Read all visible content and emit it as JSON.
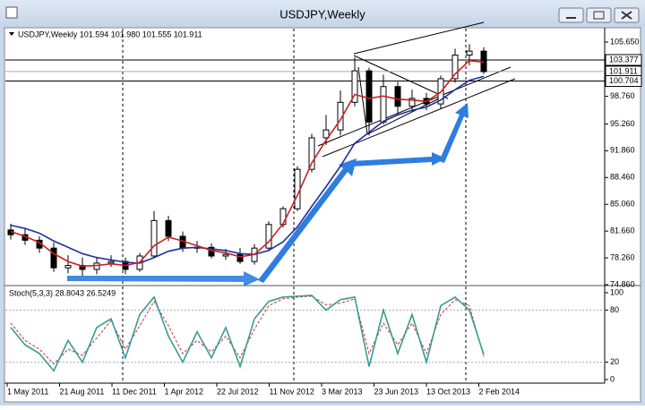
{
  "window": {
    "title": "USDJPY,Weekly"
  },
  "chart_data": {
    "type": "candlestick",
    "header": "USDJPY,Weekly  101.594 101.980 101.555 101.911",
    "open": [
      81.8,
      81.2,
      80.5,
      79.5,
      77.0,
      77.3,
      76.8,
      77.6,
      77.8,
      76.8,
      78.5,
      83.0,
      81.0,
      79.5,
      79.6,
      78.5,
      78.7,
      77.8,
      79.5,
      82.5,
      84.5,
      89.5,
      93.5,
      94.5,
      98.0,
      102.0,
      95.5,
      100.0,
      97.5,
      98.5,
      97.8,
      101.0,
      104.0,
      104.5
    ],
    "high": [
      82.6,
      81.9,
      81.0,
      80.2,
      78.6,
      78.3,
      78.4,
      78.6,
      78.3,
      78.9,
      84.2,
      83.6,
      81.6,
      80.4,
      80.1,
      79.4,
      79.5,
      80.0,
      82.9,
      84.8,
      89.9,
      94.0,
      96.4,
      99.5,
      103.7,
      102.4,
      101.5,
      100.6,
      99.6,
      99.2,
      101.4,
      104.8,
      105.4,
      105.0
    ],
    "low": [
      80.6,
      79.9,
      78.9,
      76.5,
      76.3,
      76.0,
      76.2,
      77.1,
      76.2,
      76.5,
      78.2,
      80.4,
      79.0,
      78.9,
      78.2,
      78.0,
      77.5,
      77.4,
      79.2,
      82.1,
      84.2,
      89.1,
      92.6,
      93.8,
      97.5,
      93.8,
      95.2,
      96.5,
      96.8,
      97.0,
      97.2,
      100.5,
      102.7,
      101.6
    ],
    "close": [
      81.2,
      80.5,
      79.5,
      77.0,
      77.3,
      76.8,
      77.6,
      77.8,
      76.8,
      78.5,
      83.0,
      81.0,
      79.5,
      79.6,
      78.5,
      78.7,
      77.8,
      79.5,
      82.5,
      84.5,
      89.5,
      93.5,
      94.5,
      98.0,
      102.0,
      95.5,
      100.0,
      97.5,
      98.5,
      97.8,
      101.0,
      104.0,
      104.5,
      101.9
    ],
    "ma_fast": [
      81.6,
      81.0,
      80.2,
      78.8,
      77.8,
      77.2,
      77.3,
      77.5,
      77.3,
      77.7,
      79.8,
      80.9,
      80.4,
      79.8,
      79.2,
      78.9,
      78.4,
      78.7,
      80.3,
      82.6,
      86.2,
      90.3,
      93.2,
      95.8,
      99.0,
      98.5,
      98.8,
      98.4,
      98.3,
      98.1,
      99.3,
      101.6,
      103.3,
      103.1
    ],
    "ma_slow": [
      82.4,
      82.0,
      81.4,
      80.4,
      79.6,
      78.8,
      78.3,
      78.0,
      77.7,
      77.6,
      78.3,
      79.1,
      79.5,
      79.6,
      79.4,
      79.2,
      78.8,
      78.7,
      79.2,
      80.3,
      82.2,
      84.8,
      87.3,
      89.9,
      92.8,
      94.2,
      95.6,
      96.4,
      97.0,
      97.4,
      98.3,
      99.6,
      100.8,
      101.3
    ],
    "ylim": [
      74.86,
      105.65
    ],
    "yticks": [
      {
        "value": 74.86,
        "label": "74.860"
      },
      {
        "value": 78.26,
        "label": "78.260"
      },
      {
        "value": 81.66,
        "label": "81.660"
      },
      {
        "value": 85.06,
        "label": "85.060"
      },
      {
        "value": 88.46,
        "label": "88.460"
      },
      {
        "value": 91.86,
        "label": "91.860"
      },
      {
        "value": 95.26,
        "label": "95.260"
      },
      {
        "value": 98.76,
        "label": "98.760"
      },
      {
        "value": 105.65,
        "label": "105.650"
      }
    ],
    "price_levels": [
      {
        "value": 103.377,
        "label": "103.377"
      },
      {
        "value": 101.911,
        "label": "101.911"
      },
      {
        "value": 100.704,
        "label": "100.704"
      }
    ],
    "stoch": {
      "header": "Stoch(5,3,3) 28.8043 26.5249",
      "main": [
        60,
        40,
        30,
        10,
        45,
        20,
        60,
        70,
        25,
        75,
        95,
        50,
        20,
        55,
        25,
        60,
        15,
        70,
        90,
        95,
        96,
        97,
        80,
        92,
        95,
        15,
        80,
        30,
        75,
        20,
        85,
        95,
        80,
        28.8043
      ],
      "signal": [
        65,
        45,
        35,
        18,
        35,
        28,
        48,
        68,
        35,
        62,
        90,
        62,
        30,
        45,
        32,
        50,
        25,
        58,
        85,
        93,
        95,
        96,
        86,
        88,
        93,
        30,
        65,
        40,
        65,
        30,
        75,
        92,
        85,
        26.5249
      ],
      "ylim": [
        0,
        100
      ],
      "yticks": [
        0,
        20,
        80,
        100
      ]
    },
    "dates": [
      "1 May 2011",
      "21 Aug 2011",
      "11 Dec 2011",
      "1 Apr 2012",
      "22 Jul 2012",
      "11 Nov 2012",
      "3 Mar 2013",
      "23 Jun 2013",
      "13 Oct 2013",
      "2 Feb 2014"
    ]
  }
}
